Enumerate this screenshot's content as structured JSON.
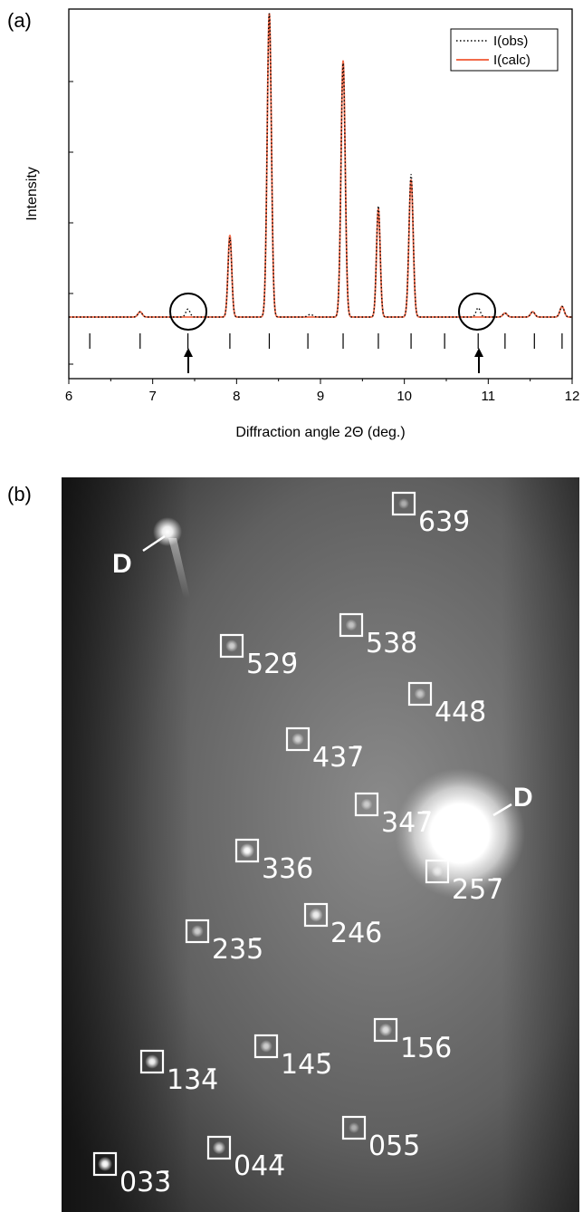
{
  "panels": {
    "a_label": "(a)",
    "b_label": "(b)"
  },
  "chart_data": {
    "type": "line",
    "xlabel": "Diffraction angle 2Θ (deg.)",
    "ylabel": "Intensity",
    "xlim": [
      6,
      12
    ],
    "x_ticks": [
      "6",
      "7",
      "8",
      "9",
      "10",
      "11",
      "12"
    ],
    "grid": false,
    "legend_position": "top-right",
    "legend": [
      "I(obs)",
      "I(calc)"
    ],
    "colors": {
      "obs": "#000000",
      "calc": "#f26b4a"
    },
    "baseline": 0.04,
    "series": [
      {
        "name": "I(obs)",
        "style": "dotted",
        "peaks": [
          {
            "x": 6.85,
            "h": 0.02,
            "w": 0.025
          },
          {
            "x": 7.42,
            "h": 0.03,
            "w": 0.025
          },
          {
            "x": 7.92,
            "h": 0.3,
            "w": 0.022
          },
          {
            "x": 8.39,
            "h": 1.15,
            "w": 0.025
          },
          {
            "x": 8.88,
            "h": 0.01,
            "w": 0.03
          },
          {
            "x": 9.27,
            "h": 0.96,
            "w": 0.025
          },
          {
            "x": 9.69,
            "h": 0.42,
            "w": 0.022
          },
          {
            "x": 10.08,
            "h": 0.54,
            "w": 0.025
          },
          {
            "x": 10.88,
            "h": 0.035,
            "w": 0.025
          },
          {
            "x": 11.2,
            "h": 0.015,
            "w": 0.025
          },
          {
            "x": 11.53,
            "h": 0.02,
            "w": 0.025
          },
          {
            "x": 11.88,
            "h": 0.04,
            "w": 0.025
          }
        ]
      },
      {
        "name": "I(calc)",
        "style": "solid",
        "peaks": [
          {
            "x": 6.85,
            "h": 0.02,
            "w": 0.025
          },
          {
            "x": 7.92,
            "h": 0.31,
            "w": 0.022
          },
          {
            "x": 8.39,
            "h": 1.15,
            "w": 0.025
          },
          {
            "x": 9.27,
            "h": 0.97,
            "w": 0.025
          },
          {
            "x": 9.69,
            "h": 0.41,
            "w": 0.022
          },
          {
            "x": 10.08,
            "h": 0.52,
            "w": 0.025
          },
          {
            "x": 11.2,
            "h": 0.015,
            "w": 0.025
          },
          {
            "x": 11.53,
            "h": 0.02,
            "w": 0.025
          },
          {
            "x": 11.88,
            "h": 0.04,
            "w": 0.025
          }
        ]
      }
    ],
    "reflection_markers": [
      6.25,
      6.85,
      7.42,
      7.92,
      8.39,
      8.85,
      9.27,
      9.69,
      10.08,
      10.48,
      10.88,
      11.2,
      11.55,
      11.88
    ],
    "highlighted_peaks": [
      7.42,
      10.88
    ]
  },
  "diffraction_pattern": {
    "direct_beam_label": "D",
    "reflections": [
      {
        "label": "639̄"
      },
      {
        "label": "538̄"
      },
      {
        "label": "529̄"
      },
      {
        "label": "448̄"
      },
      {
        "label": "437̄"
      },
      {
        "label": "347̄"
      },
      {
        "label": "336̄"
      },
      {
        "label": "257̄"
      },
      {
        "label": "246̄"
      },
      {
        "label": "235̄"
      },
      {
        "label": "156̄"
      },
      {
        "label": "145̄"
      },
      {
        "label": "134̄"
      },
      {
        "label": "055̄"
      },
      {
        "label": "044̄"
      },
      {
        "label": "033̄"
      }
    ]
  }
}
